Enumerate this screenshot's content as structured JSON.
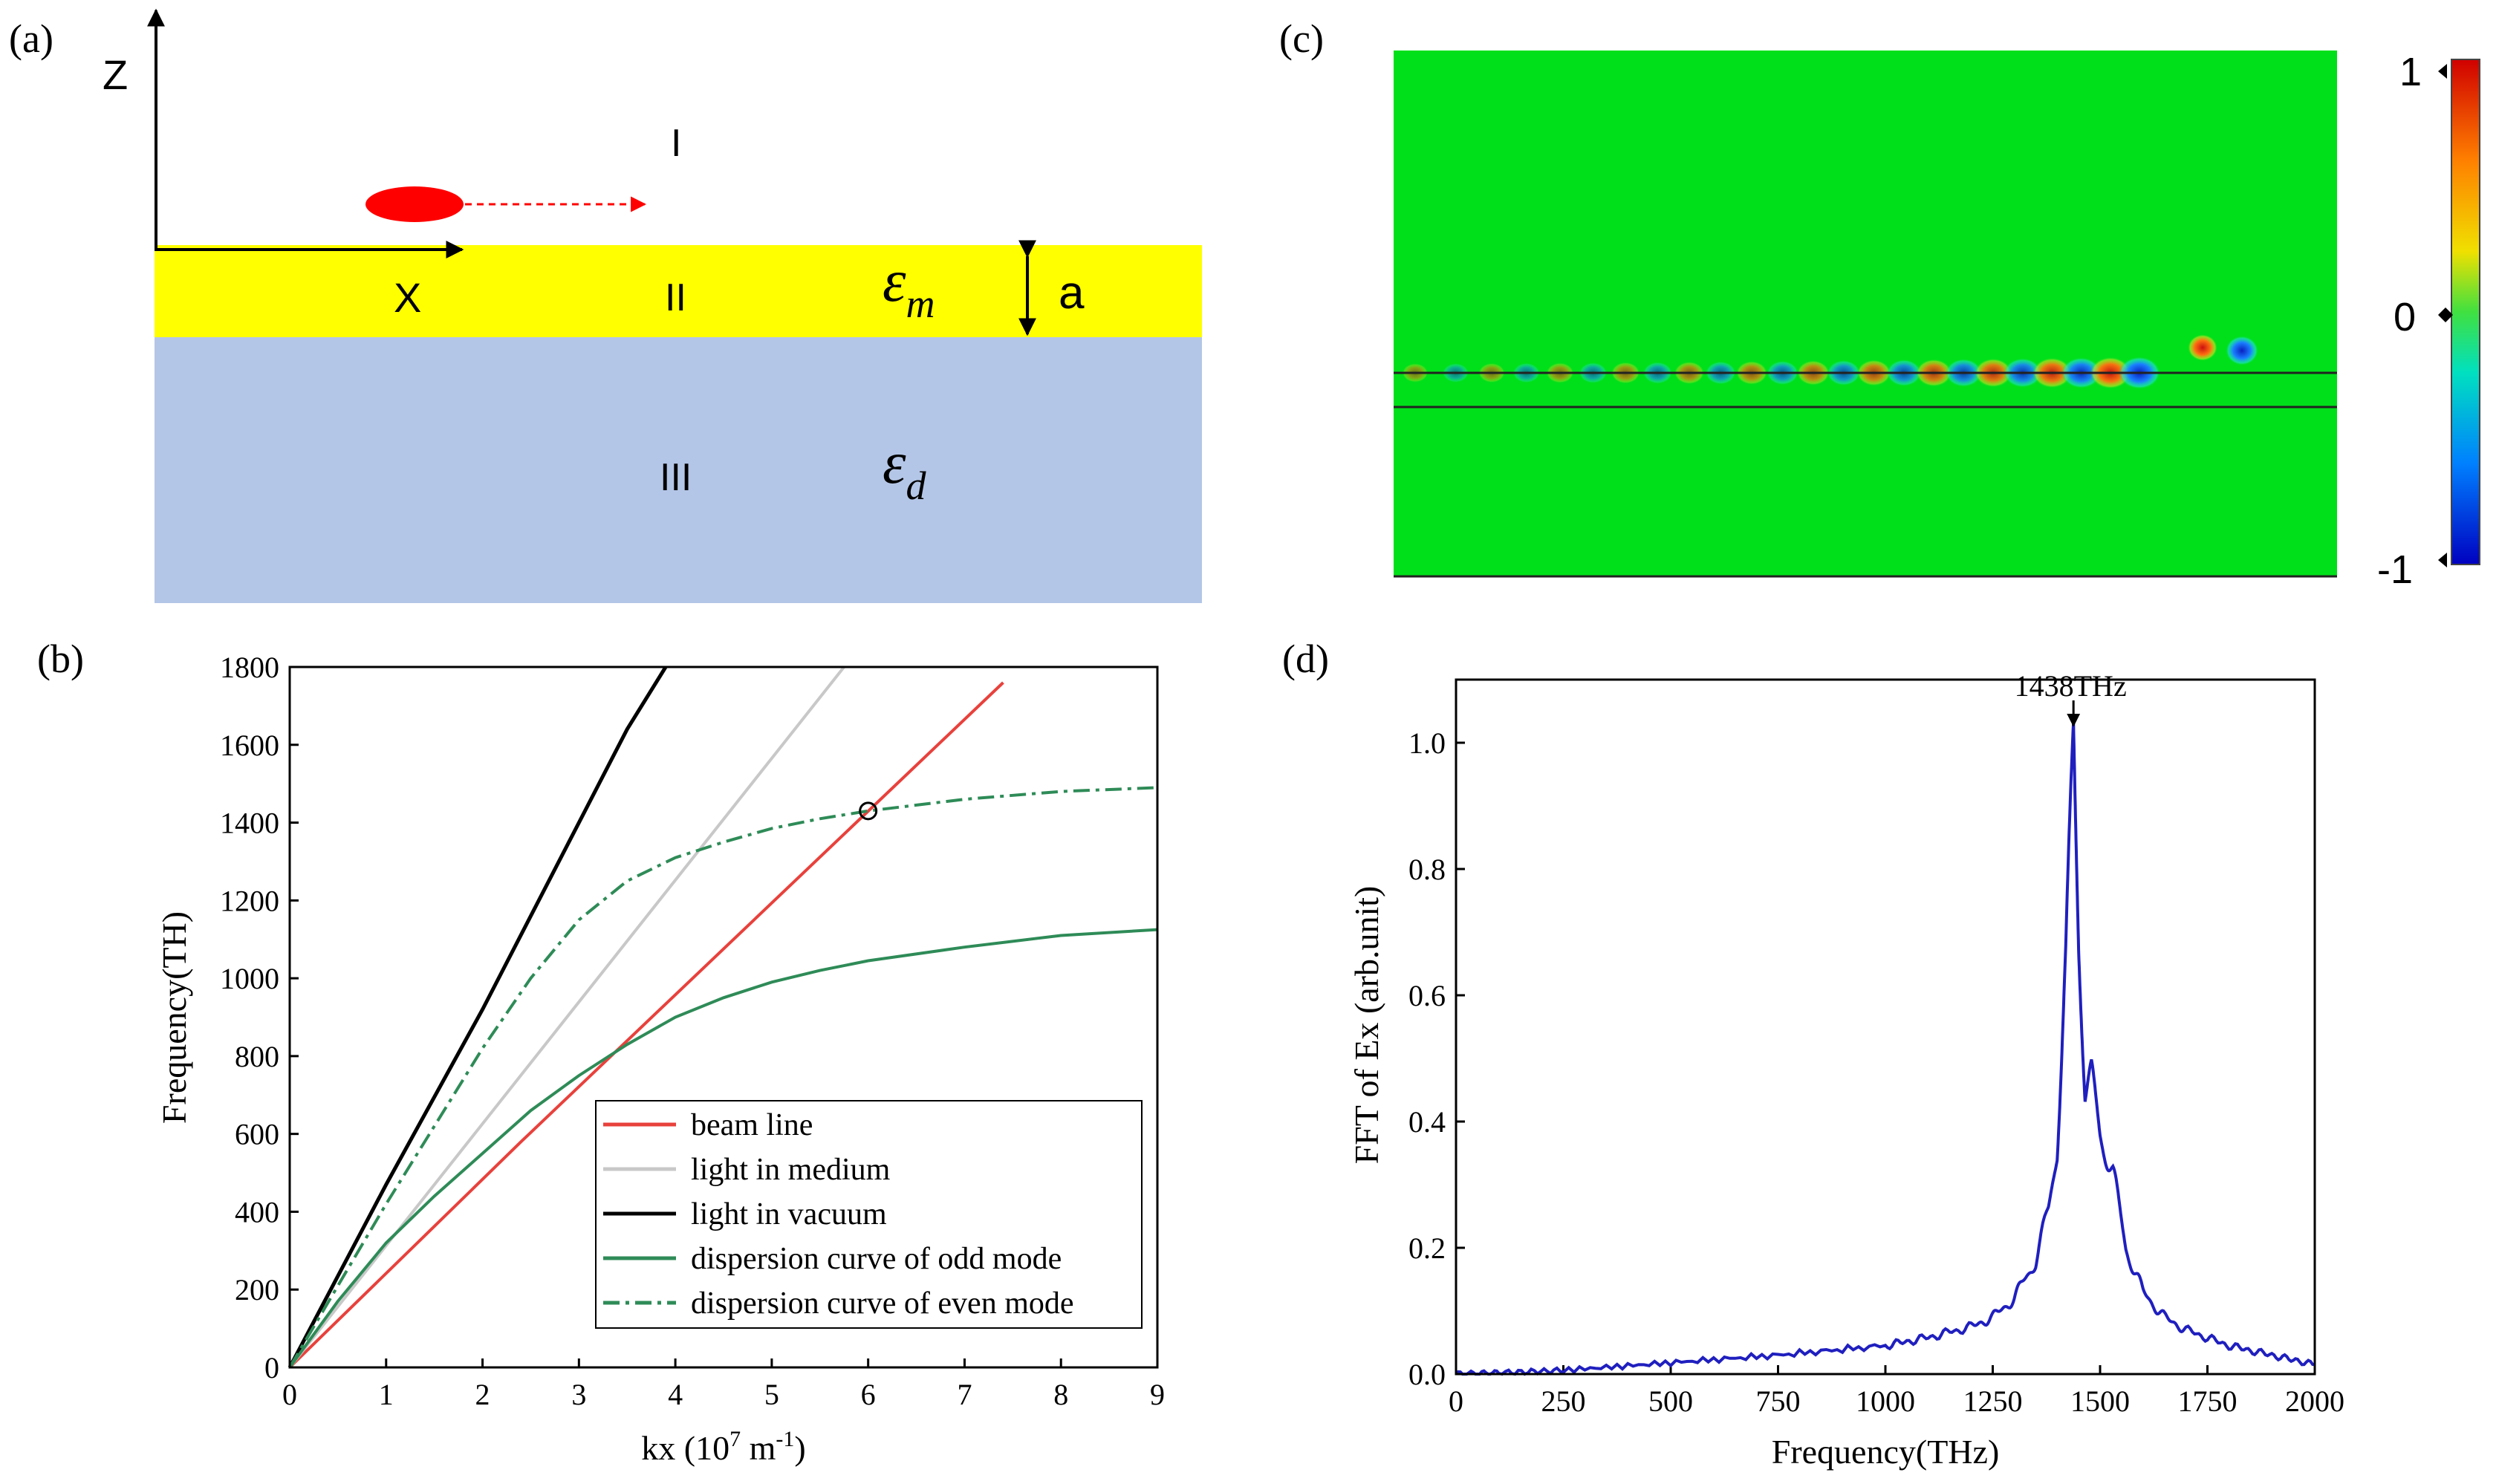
{
  "panel_a": {
    "label": "(a)",
    "axis_z": "Z",
    "axis_x": "X",
    "region_1": "I",
    "region_2": "II",
    "region_3": "III",
    "eps_m_base": "ε",
    "eps_m_sub": "m",
    "eps_d_base": "ε",
    "eps_d_sub": "d",
    "thickness": "a",
    "colors": {
      "metal": "#ffff00",
      "dielectric": "#b4c6e7",
      "beam": "#ff0000"
    }
  },
  "panel_c": {
    "label": "(c)",
    "colorbar_ticks": [
      "1",
      "0",
      "-1"
    ],
    "colors": {
      "background_field": "#00e01a",
      "positive": "#d42020",
      "negative": "#1040e0"
    }
  },
  "chart_data": [
    {
      "id": "b",
      "label": "(b)",
      "type": "line",
      "xlabel_main": "kx (10",
      "xlabel_exp": "7",
      "xlabel_unit": " m",
      "xlabel_unit_exp": "-1",
      "xlabel_close": ")",
      "ylabel": "Frequency(TH)",
      "xlim": [
        0,
        9
      ],
      "ylim": [
        0,
        1800
      ],
      "xticks": [
        "0",
        "1",
        "2",
        "3",
        "4",
        "5",
        "6",
        "7",
        "8",
        "9"
      ],
      "yticks": [
        "0",
        "200",
        "400",
        "600",
        "800",
        "1000",
        "1200",
        "1400",
        "1600",
        "1800"
      ],
      "series": [
        {
          "name": "beam line",
          "color": "#e8413c",
          "dash": "solid",
          "x": [
            0,
            2.4,
            7.4
          ],
          "y": [
            0,
            580,
            1760
          ]
        },
        {
          "name": "light in medium",
          "color": "#c8c8c8",
          "dash": "solid",
          "x": [
            0,
            5.75
          ],
          "y": [
            0,
            1800
          ]
        },
        {
          "name": "light in vacuum",
          "color": "#000000",
          "dash": "solid",
          "x": [
            0,
            1,
            2,
            3,
            3.5,
            3.9
          ],
          "y": [
            0,
            470,
            920,
            1400,
            1640,
            1800
          ]
        },
        {
          "name": "dispersion curve of odd mode",
          "color": "#2e8b57",
          "dash": "solid",
          "x": [
            0,
            0.5,
            1,
            1.5,
            2,
            2.5,
            3,
            3.5,
            4,
            4.5,
            5,
            5.5,
            6,
            7,
            8,
            9
          ],
          "y": [
            0,
            170,
            320,
            440,
            550,
            660,
            750,
            830,
            900,
            950,
            990,
            1020,
            1045,
            1080,
            1110,
            1125
          ]
        },
        {
          "name": "dispersion curve of even mode",
          "color": "#2e8b57",
          "dash": "dashdot",
          "x": [
            0,
            0.5,
            1,
            1.5,
            2,
            2.5,
            3,
            3.5,
            4,
            4.5,
            5,
            5.5,
            6,
            7,
            8,
            9
          ],
          "y": [
            0,
            210,
            420,
            620,
            820,
            1000,
            1150,
            1250,
            1310,
            1350,
            1385,
            1410,
            1430,
            1460,
            1480,
            1490
          ]
        }
      ],
      "annotations": [
        {
          "type": "circle",
          "x": 6.0,
          "y": 1430
        }
      ]
    },
    {
      "id": "d",
      "label": "(d)",
      "type": "line",
      "xlabel": "Frequency(THz)",
      "ylabel": "FFT of Ex (arb.unit)",
      "xlim": [
        0,
        2000
      ],
      "ylim": [
        0,
        1.1
      ],
      "xticks": [
        "0",
        "250",
        "500",
        "750",
        "1000",
        "1250",
        "1500",
        "1750",
        "2000"
      ],
      "yticks": [
        "0.0",
        "0.2",
        "0.4",
        "0.6",
        "0.8",
        "1.0"
      ],
      "series": [
        {
          "name": "FFT of Ex",
          "color": "#1f1fbf",
          "dash": "solid",
          "x": [
            0,
            100,
            250,
            500,
            750,
            1000,
            1100,
            1200,
            1250,
            1300,
            1350,
            1380,
            1400,
            1420,
            1438,
            1450,
            1465,
            1480,
            1500,
            1530,
            1560,
            1600,
            1650,
            1700,
            1800,
            1900,
            2000
          ],
          "y": [
            0.0,
            0.002,
            0.006,
            0.018,
            0.03,
            0.045,
            0.058,
            0.075,
            0.09,
            0.12,
            0.18,
            0.26,
            0.36,
            0.65,
            1.01,
            0.7,
            0.45,
            0.47,
            0.38,
            0.32,
            0.2,
            0.13,
            0.09,
            0.07,
            0.045,
            0.03,
            0.015
          ]
        }
      ],
      "annotations": [
        {
          "type": "arrow",
          "x": 1438,
          "y": 1.02,
          "text": "1438THz"
        }
      ]
    }
  ]
}
